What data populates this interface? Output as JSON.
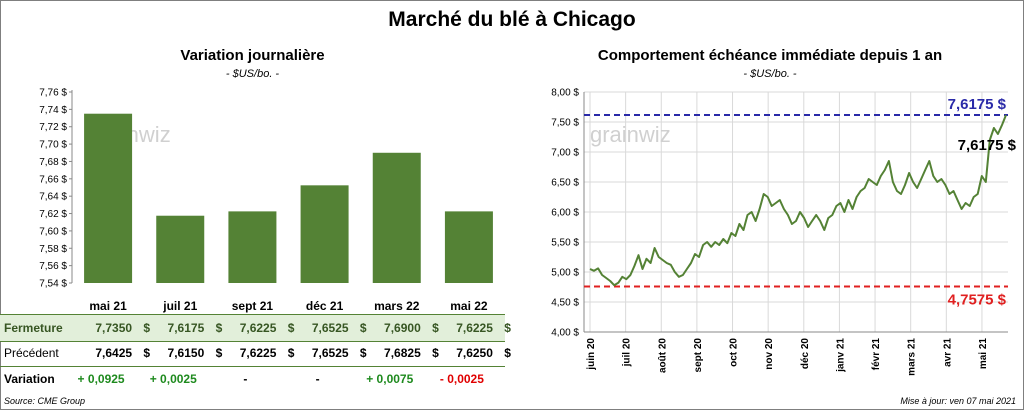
{
  "title": "Marché du blé à Chicago",
  "left": {
    "title": "Variation journalière",
    "unit": "- $US/bo. -",
    "watermark": "grainwiz",
    "columns": [
      "mai 21",
      "juil 21",
      "sept 21",
      "déc 21",
      "mars 22",
      "mai 22"
    ],
    "rows": [
      {
        "label": "Fermeture",
        "values": [
          "7,7350",
          "7,6175",
          "7,6225",
          "7,6525",
          "7,6900",
          "7,6225"
        ],
        "currency": "$"
      },
      {
        "label": "Précédent",
        "values": [
          "7,6425",
          "7,6150",
          "7,6225",
          "7,6525",
          "7,6825",
          "7,6250"
        ],
        "currency": "$"
      },
      {
        "label": "Variation",
        "values": [
          "+ 0,0925",
          "+ 0,0025",
          "-",
          "-",
          "+ 0,0075",
          "- 0,0025"
        ],
        "colors": [
          "#1e8a1e",
          "#1e8a1e",
          "#000000",
          "#000000",
          "#1e8a1e",
          "#e00000"
        ]
      }
    ],
    "source": "Source: CME Group"
  },
  "right": {
    "title": "Comportement  échéance immédiate depuis 1 an",
    "unit": "- $US/bo. -",
    "watermark": "grainwiz",
    "high_label": "7,6175 $",
    "low_label": "4,7575 $",
    "last_label": "7,6175 $",
    "updated": "Mise à jour: ven 07 mai 2021"
  },
  "colors": {
    "bar": "#548235",
    "line": "#548235",
    "high": "#2a2aa8",
    "low": "#e02020",
    "fermeture_bg": "#e2efda"
  },
  "chart_data": [
    {
      "type": "bar",
      "categories": [
        "mai 21",
        "juil 21",
        "sept 21",
        "déc 21",
        "mars 22",
        "mai 22"
      ],
      "values": [
        7.735,
        7.6175,
        7.6225,
        7.6525,
        7.69,
        7.6225
      ],
      "title": "Variation journalière",
      "ylabel": "- $US/bo. -",
      "ylim": [
        7.54,
        7.76
      ],
      "yticks": [
        "7,54 $",
        "7,56 $",
        "7,58 $",
        "7,60 $",
        "7,62 $",
        "7,64 $",
        "7,66 $",
        "7,68 $",
        "7,70 $",
        "7,72 $",
        "7,74 $",
        "7,76 $"
      ],
      "grid": false
    },
    {
      "type": "line",
      "title": "Comportement  échéance immédiate depuis 1 an",
      "ylabel": "- $US/bo. -",
      "ylim": [
        4.0,
        8.0
      ],
      "yticks": [
        "4,00 $",
        "4,50 $",
        "5,00 $",
        "5,50 $",
        "6,00 $",
        "6,50 $",
        "7,00 $",
        "7,50 $",
        "8,00 $"
      ],
      "xticks": [
        "juin 20",
        "juil 20",
        "août 20",
        "sept 20",
        "oct 20",
        "nov 20",
        "déc 20",
        "janv 21",
        "févr 21",
        "mars 21",
        "avr 21",
        "mai 21"
      ],
      "grid": true,
      "reference_lines": [
        {
          "value": 7.6175,
          "label": "7,6175 $",
          "style": "dashed",
          "color": "#2a2aa8"
        },
        {
          "value": 4.7575,
          "label": "4,7575 $",
          "style": "dashed",
          "color": "#e02020"
        }
      ],
      "series": [
        {
          "values": [
            5.05,
            5.02,
            5.06,
            4.95,
            4.9,
            4.85,
            4.78,
            4.82,
            4.92,
            4.88,
            4.95,
            5.1,
            5.28,
            5.05,
            5.22,
            5.15,
            5.4,
            5.25,
            5.2,
            5.15,
            5.12,
            5.0,
            4.92,
            4.95,
            5.05,
            5.15,
            5.3,
            5.25,
            5.45,
            5.5,
            5.42,
            5.5,
            5.45,
            5.55,
            5.48,
            5.65,
            5.6,
            5.8,
            5.7,
            5.95,
            6.0,
            5.85,
            6.05,
            6.3,
            6.25,
            6.1,
            6.15,
            6.2,
            6.05,
            5.95,
            5.8,
            5.85,
            6.0,
            5.9,
            5.75,
            5.85,
            5.95,
            5.85,
            5.7,
            5.9,
            5.95,
            6.1,
            6.15,
            6.0,
            6.2,
            6.05,
            6.25,
            6.35,
            6.4,
            6.55,
            6.5,
            6.45,
            6.6,
            6.7,
            6.85,
            6.5,
            6.35,
            6.3,
            6.45,
            6.65,
            6.5,
            6.4,
            6.55,
            6.7,
            6.85,
            6.6,
            6.5,
            6.55,
            6.45,
            6.3,
            6.35,
            6.2,
            6.05,
            6.15,
            6.1,
            6.25,
            6.3,
            6.6,
            6.5,
            7.2,
            7.4,
            7.3,
            7.45,
            7.6175
          ]
        }
      ]
    }
  ]
}
